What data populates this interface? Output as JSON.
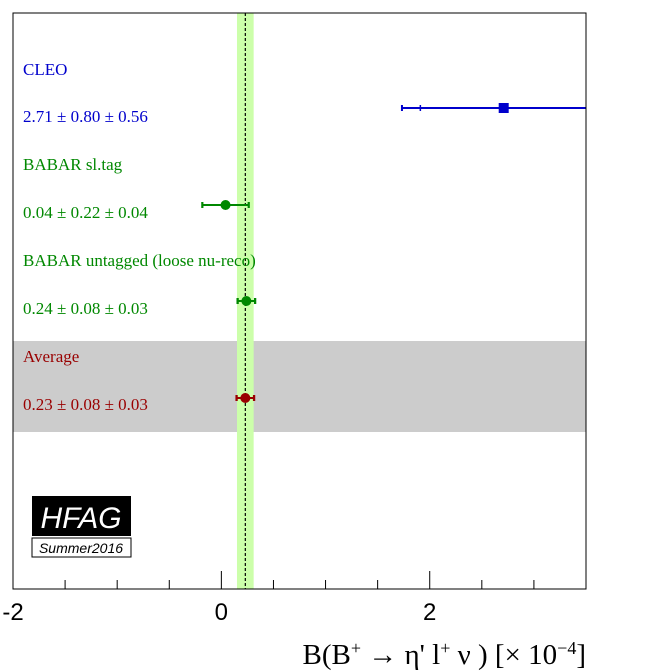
{
  "chart_data": {
    "type": "scatter",
    "subtype": "horizontal error-bar comparison",
    "xlabel": "B(B⁺ → η' l⁺ ν ) [× 10⁻⁴]",
    "xlim": [
      -2.0,
      3.5
    ],
    "ticks": {
      "major": [
        -2,
        0,
        2
      ],
      "minor_step": 0.5
    },
    "grid": false,
    "average_band": {
      "center": 0.23,
      "error": 0.08
    },
    "measurements": [
      {
        "name": "CLEO",
        "result": "2.71 ± 0.80 ± 0.56",
        "value": 2.71,
        "stat": 0.8,
        "syst": 0.56,
        "color": "#0000cc",
        "marker": "square"
      },
      {
        "name": "BABAR sl.tag",
        "result": "0.04 ± 0.22 ± 0.04",
        "value": 0.04,
        "stat": 0.22,
        "syst": 0.04,
        "color": "#008800",
        "marker": "circle"
      },
      {
        "name": "BABAR untagged (loose nu-reco)",
        "result": "0.24 ± 0.08 ± 0.03",
        "value": 0.24,
        "stat": 0.08,
        "syst": 0.03,
        "color": "#008800",
        "marker": "circle"
      },
      {
        "name": "Average",
        "result": "0.23 ± 0.08 ± 0.03",
        "value": 0.23,
        "stat": 0.08,
        "syst": 0.03,
        "color": "#990000",
        "marker": "circle",
        "is_average": true
      }
    ],
    "colors": {
      "band": "#ccffaa",
      "average_row": "#cccccc"
    }
  },
  "logo": {
    "main": "HFAG",
    "sub": "Summer2016"
  }
}
